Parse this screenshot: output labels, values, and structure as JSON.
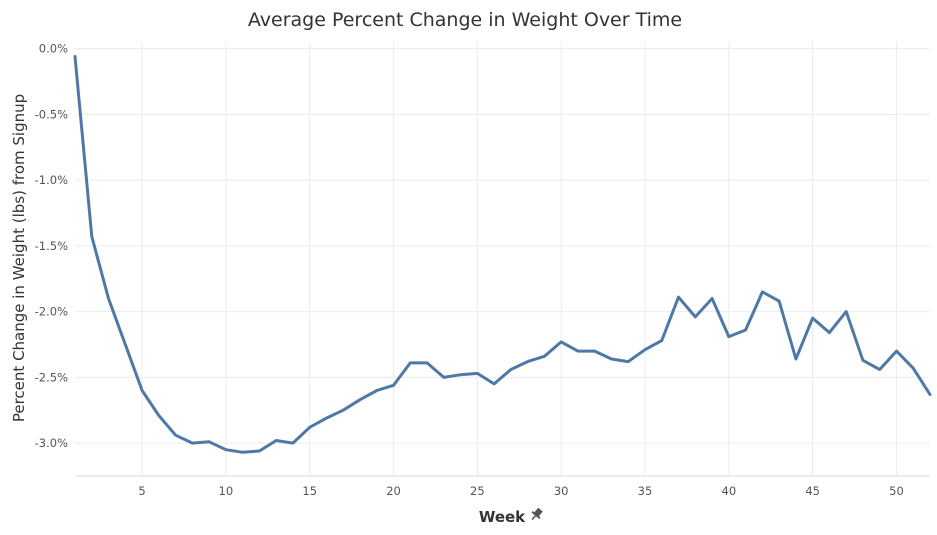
{
  "chart_data": {
    "type": "line",
    "title": "Average Percent Change in Weight Over Time",
    "xlabel": "Week",
    "ylabel": "Percent Change in Weight (lbs) from Signup",
    "xlim": [
      1,
      52
    ],
    "ylim": [
      -3.25,
      0.05
    ],
    "x_ticks": [
      5,
      10,
      15,
      20,
      25,
      30,
      35,
      40,
      45,
      50
    ],
    "y_ticks": [
      0,
      -0.5,
      -1.0,
      -1.5,
      -2.0,
      -2.5,
      -3.0
    ],
    "y_tick_labels": [
      "0.0%",
      "-0.5%",
      "-1.0%",
      "-1.5%",
      "-2.0%",
      "-2.5%",
      "-3.0%"
    ],
    "grid": true,
    "legend": "none",
    "colors": {
      "line": "#4e79a7",
      "pin_icon": "#555555"
    },
    "x_axis_icon": "pin-icon",
    "series": [
      {
        "x": [
          1,
          2,
          3,
          4,
          5,
          6,
          7,
          8,
          9,
          10,
          11,
          12,
          13,
          14,
          15,
          16,
          17,
          18,
          19,
          20,
          21,
          22,
          23,
          24,
          25,
          26,
          27,
          28,
          29,
          30,
          31,
          32,
          33,
          34,
          35,
          36,
          37,
          38,
          39,
          40,
          41,
          42,
          43,
          44,
          45,
          46,
          47,
          48,
          49,
          50,
          51,
          52
        ],
        "values": [
          -0.06,
          -1.43,
          -1.9,
          -2.25,
          -2.6,
          -2.79,
          -2.94,
          -3.0,
          -2.99,
          -3.05,
          -3.07,
          -3.06,
          -2.98,
          -3.0,
          -2.88,
          -2.81,
          -2.75,
          -2.67,
          -2.6,
          -2.56,
          -2.39,
          -2.39,
          -2.5,
          -2.48,
          -2.47,
          -2.55,
          -2.44,
          -2.38,
          -2.34,
          -2.23,
          -2.3,
          -2.3,
          -2.36,
          -2.38,
          -2.29,
          -2.22,
          -1.89,
          -2.04,
          -1.9,
          -2.19,
          -2.14,
          -1.85,
          -1.92,
          -2.36,
          -2.05,
          -2.16,
          -2.0,
          -2.37,
          -2.44,
          -2.3,
          -2.43,
          -2.63
        ]
      }
    ]
  }
}
